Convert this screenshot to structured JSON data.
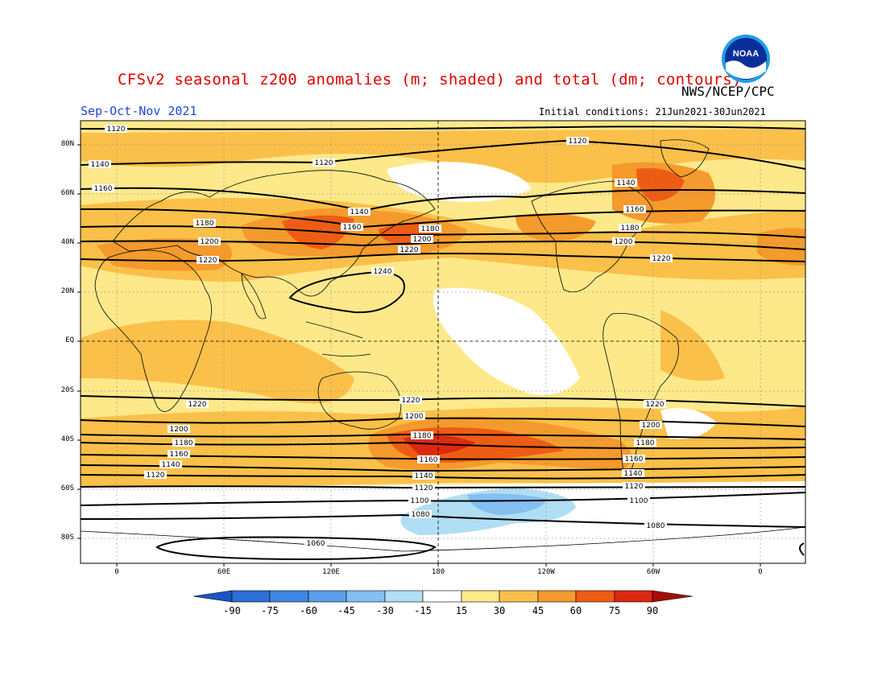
{
  "header": {
    "title": "CFSv2 seasonal z200 anomalies (m; shaded) and total (dm; contours)",
    "agency": "NWS/NCEP/CPC",
    "season": "Sep-Oct-Nov 2021",
    "initial_conditions": "Initial conditions: 21Jun2021-30Jun2021",
    "logo_text": "NOAA"
  },
  "axes": {
    "lat_labels": [
      "80N",
      "60N",
      "40N",
      "20N",
      "EQ",
      "20S",
      "40S",
      "60S",
      "80S"
    ],
    "lon_labels": [
      "0",
      "60E",
      "120E",
      "180",
      "120W",
      "60W",
      "0"
    ]
  },
  "colorbar": {
    "labels": [
      "-90",
      "-75",
      "-60",
      "-45",
      "-30",
      "-15",
      "15",
      "30",
      "45",
      "60",
      "75",
      "90"
    ],
    "colors": [
      "#2c6fd6",
      "#3f86e2",
      "#5b9fea",
      "#84bff1",
      "#b0def4",
      "#ffffff",
      "#fde98a",
      "#fbc04a",
      "#f59a2c",
      "#ee5c14",
      "#dc2810",
      "#a50d06"
    ]
  },
  "contour_labels": [
    "1120",
    "1140",
    "1160",
    "1180",
    "1200",
    "1220",
    "1240",
    "1100",
    "1080",
    "1060"
  ]
}
